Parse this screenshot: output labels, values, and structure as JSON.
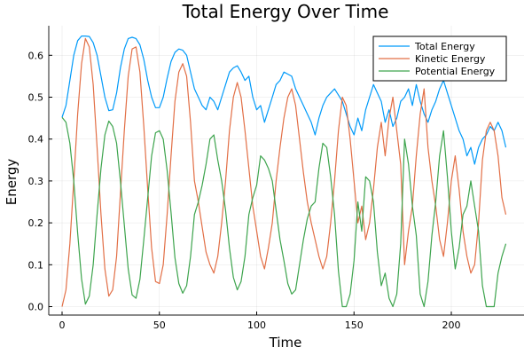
{
  "chart_data": {
    "type": "line",
    "title": "Total Energy Over Time",
    "xlabel": "Time",
    "ylabel": "Energy",
    "xlim": [
      -6,
      237
    ],
    "ylim": [
      -0.015,
      0.67
    ],
    "xticks": [
      0,
      50,
      100,
      150,
      200
    ],
    "xtick_labels": [
      "0",
      "50",
      "100",
      "150",
      "200"
    ],
    "yticks": [
      0.0,
      0.1,
      0.2,
      0.3,
      0.4,
      0.5,
      0.6
    ],
    "ytick_labels": [
      "0.0",
      "0.1",
      "0.2",
      "0.3",
      "0.4",
      "0.5",
      "0.6"
    ],
    "grid": true,
    "legend_position": "top-right",
    "x": [
      0,
      2,
      4,
      6,
      8,
      10,
      12,
      14,
      16,
      18,
      20,
      22,
      24,
      26,
      28,
      30,
      32,
      34,
      36,
      38,
      40,
      42,
      44,
      46,
      48,
      50,
      52,
      54,
      56,
      58,
      60,
      62,
      64,
      66,
      68,
      70,
      72,
      74,
      76,
      78,
      80,
      82,
      84,
      86,
      88,
      90,
      92,
      94,
      96,
      98,
      100,
      102,
      104,
      106,
      108,
      110,
      112,
      114,
      116,
      118,
      120,
      122,
      124,
      126,
      128,
      130,
      132,
      134,
      136,
      138,
      140,
      142,
      144,
      146,
      148,
      150,
      152,
      154,
      156,
      158,
      160,
      162,
      164,
      166,
      168,
      170,
      172,
      174,
      176,
      178,
      180,
      182,
      184,
      186,
      188,
      190,
      192,
      194,
      196,
      198,
      200,
      202,
      204,
      206,
      208,
      210,
      212,
      214,
      216,
      218,
      220,
      222,
      224,
      226,
      228
    ],
    "series": [
      {
        "name": "Total Energy",
        "color": "#009af9",
        "values": [
          0.452,
          0.48,
          0.54,
          0.6,
          0.635,
          0.646,
          0.646,
          0.645,
          0.63,
          0.6,
          0.55,
          0.5,
          0.468,
          0.47,
          0.51,
          0.57,
          0.615,
          0.64,
          0.643,
          0.64,
          0.625,
          0.59,
          0.54,
          0.5,
          0.475,
          0.475,
          0.5,
          0.545,
          0.585,
          0.607,
          0.615,
          0.612,
          0.6,
          0.56,
          0.52,
          0.5,
          0.48,
          0.47,
          0.5,
          0.49,
          0.47,
          0.5,
          0.53,
          0.56,
          0.57,
          0.575,
          0.56,
          0.54,
          0.55,
          0.5,
          0.47,
          0.48,
          0.44,
          0.47,
          0.5,
          0.53,
          0.54,
          0.56,
          0.555,
          0.55,
          0.52,
          0.5,
          0.48,
          0.46,
          0.44,
          0.41,
          0.45,
          0.48,
          0.5,
          0.51,
          0.52,
          0.505,
          0.49,
          0.46,
          0.43,
          0.41,
          0.45,
          0.42,
          0.47,
          0.5,
          0.53,
          0.51,
          0.49,
          0.44,
          0.47,
          0.43,
          0.45,
          0.49,
          0.5,
          0.52,
          0.48,
          0.53,
          0.49,
          0.46,
          0.44,
          0.47,
          0.49,
          0.52,
          0.54,
          0.51,
          0.48,
          0.45,
          0.42,
          0.4,
          0.36,
          0.38,
          0.34,
          0.38,
          0.4,
          0.41,
          0.43,
          0.42,
          0.44,
          0.42,
          0.38
        ]
      },
      {
        "name": "Kinetic Energy",
        "color": "#e26f46",
        "values": [
          0.0,
          0.04,
          0.15,
          0.3,
          0.46,
          0.58,
          0.64,
          0.62,
          0.53,
          0.38,
          0.22,
          0.09,
          0.025,
          0.04,
          0.12,
          0.27,
          0.42,
          0.55,
          0.615,
          0.62,
          0.56,
          0.43,
          0.28,
          0.14,
          0.06,
          0.055,
          0.1,
          0.22,
          0.36,
          0.49,
          0.56,
          0.58,
          0.55,
          0.44,
          0.3,
          0.25,
          0.19,
          0.13,
          0.1,
          0.08,
          0.12,
          0.2,
          0.3,
          0.42,
          0.5,
          0.535,
          0.5,
          0.42,
          0.33,
          0.24,
          0.18,
          0.12,
          0.09,
          0.14,
          0.2,
          0.3,
          0.38,
          0.45,
          0.5,
          0.52,
          0.48,
          0.4,
          0.32,
          0.25,
          0.2,
          0.16,
          0.12,
          0.09,
          0.12,
          0.2,
          0.3,
          0.42,
          0.5,
          0.48,
          0.4,
          0.3,
          0.2,
          0.24,
          0.16,
          0.2,
          0.28,
          0.38,
          0.44,
          0.36,
          0.45,
          0.5,
          0.42,
          0.34,
          0.1,
          0.18,
          0.24,
          0.36,
          0.46,
          0.52,
          0.38,
          0.3,
          0.24,
          0.16,
          0.12,
          0.2,
          0.3,
          0.36,
          0.28,
          0.18,
          0.12,
          0.08,
          0.1,
          0.2,
          0.35,
          0.42,
          0.44,
          0.42,
          0.36,
          0.26,
          0.22
        ]
      },
      {
        "name": "Potential Energy",
        "color": "#3da44d",
        "values": [
          0.452,
          0.44,
          0.39,
          0.3,
          0.175,
          0.066,
          0.006,
          0.025,
          0.1,
          0.22,
          0.33,
          0.41,
          0.443,
          0.43,
          0.39,
          0.3,
          0.195,
          0.09,
          0.028,
          0.02,
          0.065,
          0.16,
          0.26,
          0.36,
          0.415,
          0.42,
          0.4,
          0.325,
          0.225,
          0.117,
          0.055,
          0.032,
          0.05,
          0.12,
          0.22,
          0.25,
          0.29,
          0.34,
          0.4,
          0.41,
          0.35,
          0.3,
          0.23,
          0.14,
          0.07,
          0.04,
          0.06,
          0.12,
          0.22,
          0.26,
          0.29,
          0.36,
          0.35,
          0.33,
          0.3,
          0.23,
          0.16,
          0.11,
          0.055,
          0.03,
          0.04,
          0.1,
          0.16,
          0.21,
          0.24,
          0.25,
          0.33,
          0.39,
          0.38,
          0.31,
          0.22,
          0.085,
          0.0,
          0.0,
          0.03,
          0.11,
          0.25,
          0.18,
          0.31,
          0.3,
          0.25,
          0.13,
          0.05,
          0.08,
          0.02,
          0.0,
          0.03,
          0.15,
          0.4,
          0.34,
          0.24,
          0.17,
          0.03,
          0.0,
          0.06,
          0.17,
          0.25,
          0.36,
          0.42,
          0.31,
          0.18,
          0.09,
          0.14,
          0.22,
          0.24,
          0.3,
          0.24,
          0.18,
          0.05,
          0.0,
          0.0,
          0.0,
          0.08,
          0.12,
          0.15
        ]
      }
    ]
  }
}
